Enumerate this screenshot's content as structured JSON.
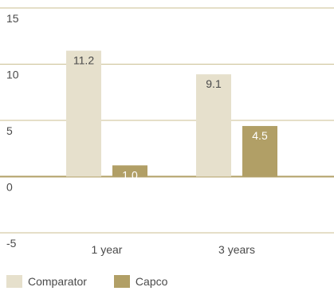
{
  "chart_data": {
    "type": "bar",
    "categories": [
      "1 year",
      "3 years"
    ],
    "series": [
      {
        "name": "Comparator",
        "values": [
          11.2,
          9.1
        ],
        "labels": [
          "11.2",
          "9.1"
        ],
        "color": "#e6e0cc",
        "label_color": "#4a4a4a"
      },
      {
        "name": "Capco",
        "values": [
          1.0,
          4.5
        ],
        "labels": [
          "1.0",
          "4.5"
        ],
        "color": "#b19f66",
        "label_color": "#ffffff"
      }
    ],
    "title": "",
    "xlabel": "",
    "ylabel": "",
    "ylim": [
      -5,
      15
    ],
    "yticks": [
      15,
      10,
      5,
      0,
      -5
    ],
    "ytick_labels": [
      "15",
      "10",
      "5",
      "0",
      "-5"
    ],
    "grid": true,
    "grid_color": "#cbbf92",
    "zero_line_color": "#b19f66",
    "legend_position": "bottom-left"
  }
}
